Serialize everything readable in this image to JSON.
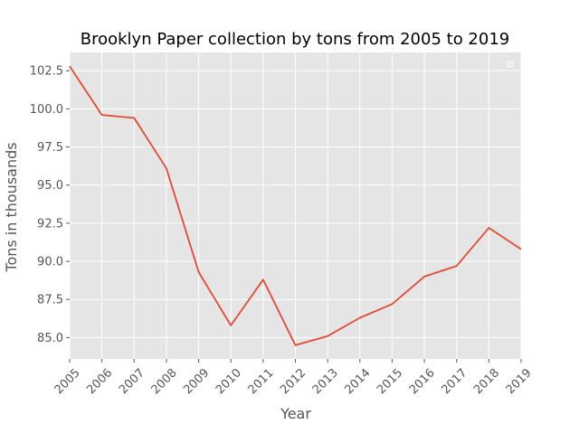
{
  "chart_data": {
    "type": "line",
    "title": "Brooklyn Paper collection by tons from 2005 to 2019",
    "xlabel": "Year",
    "ylabel": "Tons in thousands",
    "x": [
      2005,
      2006,
      2007,
      2008,
      2009,
      2010,
      2011,
      2012,
      2013,
      2014,
      2015,
      2016,
      2017,
      2018,
      2019
    ],
    "x_ticks": [
      "2005",
      "2006",
      "2007",
      "2008",
      "2009",
      "2010",
      "2011",
      "2012",
      "2013",
      "2014",
      "2015",
      "2016",
      "2017",
      "2018",
      "2019"
    ],
    "y_ticks": [
      "85.0",
      "87.5",
      "90.0",
      "92.5",
      "95.0",
      "97.5",
      "100.0",
      "102.5"
    ],
    "y_tick_values": [
      85.0,
      87.5,
      90.0,
      92.5,
      95.0,
      97.5,
      100.0,
      102.5
    ],
    "xlim": [
      2005,
      2019
    ],
    "ylim": [
      83.6,
      103.7
    ],
    "series": [
      {
        "values": [
          102.8,
          99.6,
          99.4,
          96.1,
          89.3,
          85.8,
          88.8,
          84.5,
          85.1,
          86.3,
          87.2,
          89.0,
          89.7,
          92.2,
          90.8
        ],
        "color": "#e24a33"
      }
    ],
    "grid": true,
    "legend": "top-right",
    "style": {
      "axes_bg": "#e5e5e5",
      "grid_color": "#ffffff",
      "line_color": "#e24a33",
      "text_color": "#555555"
    }
  }
}
